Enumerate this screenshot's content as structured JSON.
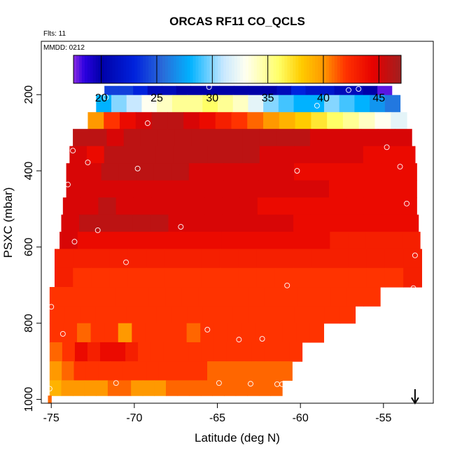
{
  "chart_data": {
    "type": "heatmap",
    "title": "ORCAS RF11 CO_QCLS",
    "flights_note": "Flts: 11",
    "date_note": "MMDD: 0212",
    "xlabel": "Latitude (deg N)",
    "ylabel": "PSXC (mbar)",
    "xlim": [
      -75.6,
      -52.0
    ],
    "ylim": [
      1010,
      60
    ],
    "x_ticks": [
      -75,
      -70,
      -65,
      -60,
      -55
    ],
    "y_ticks": [
      200,
      400,
      600,
      800,
      1000
    ],
    "colorbar": {
      "min": 17.5,
      "max": 47.0,
      "ticks": [
        20,
        25,
        30,
        35,
        40,
        45
      ],
      "stops": [
        {
          "value": 17.5,
          "color": "#8a2be2"
        },
        {
          "value": 18.5,
          "color": "#2a00e0"
        },
        {
          "value": 20.0,
          "color": "#0000a8"
        },
        {
          "value": 23.0,
          "color": "#0022dd"
        },
        {
          "value": 25.5,
          "color": "#2a6ad8"
        },
        {
          "value": 28.0,
          "color": "#00b2ff"
        },
        {
          "value": 31.0,
          "color": "#c8e8ff"
        },
        {
          "value": 33.0,
          "color": "#fffff0"
        },
        {
          "value": 36.0,
          "color": "#ffff66"
        },
        {
          "value": 38.0,
          "color": "#ffcc00"
        },
        {
          "value": 40.0,
          "color": "#ff9900"
        },
        {
          "value": 42.0,
          "color": "#ff3300"
        },
        {
          "value": 44.5,
          "color": "#e60000"
        },
        {
          "value": 47.0,
          "color": "#a02020"
        }
      ]
    },
    "rows": [
      {
        "p": [
          177,
          201
        ],
        "lat": [
          -71.8,
          -54.5
        ],
        "values": [
          24,
          24,
          23,
          21,
          21,
          20,
          20,
          20,
          20,
          20,
          20,
          20,
          21,
          23,
          22,
          22,
          21,
          21,
          20,
          18
        ]
      },
      {
        "p": [
          201,
          246
        ],
        "lat": [
          -72.3,
          -54.0
        ],
        "values": [
          28,
          30,
          31,
          33,
          34,
          35,
          35,
          36,
          35,
          34,
          32,
          30,
          29,
          28,
          28,
          30,
          29,
          28,
          27,
          26
        ]
      },
      {
        "p": [
          246,
          290
        ],
        "lat": [
          -72.8,
          -53.6
        ],
        "values": [
          40,
          42,
          44,
          45,
          46,
          46,
          45,
          44,
          43,
          42,
          41,
          40,
          39,
          38,
          37,
          36,
          35,
          34,
          33,
          32
        ]
      },
      {
        "p": [
          290,
          335
        ],
        "lat": [
          -73.7,
          -53.3
        ],
        "values": [
          46,
          46,
          45,
          46,
          46,
          46,
          46,
          46,
          46,
          46,
          46,
          46,
          46,
          46,
          45,
          45,
          45,
          45,
          45,
          45
        ]
      },
      {
        "p": [
          335,
          380
        ],
        "lat": [
          -73.9,
          -53.1
        ],
        "values": [
          45,
          44,
          46,
          46,
          46,
          46,
          46,
          46,
          46,
          46,
          46,
          45,
          45,
          45,
          45,
          45,
          45,
          44,
          44,
          44
        ]
      },
      {
        "p": [
          380,
          425
        ],
        "lat": [
          -74.1,
          -53.0
        ],
        "values": [
          45,
          45,
          46,
          46,
          46,
          46,
          46,
          45,
          45,
          45,
          45,
          45,
          45,
          44,
          44,
          44,
          44,
          44,
          44,
          44
        ]
      },
      {
        "p": [
          425,
          470
        ],
        "lat": [
          -74.1,
          -53.0
        ],
        "values": [
          45,
          45,
          45,
          45,
          45,
          45,
          45,
          45,
          45,
          45,
          45,
          45,
          45,
          45,
          45,
          44,
          44,
          44,
          44,
          44
        ]
      },
      {
        "p": [
          470,
          515
        ],
        "lat": [
          -74.3,
          -53.0
        ],
        "values": [
          45,
          45,
          46,
          45,
          45,
          45,
          45,
          45,
          45,
          45,
          45,
          44,
          44,
          44,
          44,
          44,
          44,
          44,
          44,
          44
        ]
      },
      {
        "p": [
          515,
          560
        ],
        "lat": [
          -74.4,
          -52.9
        ],
        "values": [
          45,
          46,
          46,
          46,
          46,
          46,
          45,
          45,
          45,
          45,
          45,
          45,
          45,
          44,
          44,
          44,
          44,
          44,
          44,
          44
        ]
      },
      {
        "p": [
          560,
          605
        ],
        "lat": [
          -74.5,
          -52.8
        ],
        "values": [
          45,
          44,
          44,
          44,
          44,
          44,
          44,
          44,
          44,
          44,
          44,
          44,
          44,
          44,
          44,
          43,
          43,
          43,
          43,
          43
        ]
      },
      {
        "p": [
          605,
          655
        ],
        "lat": [
          -74.8,
          -52.7
        ],
        "values": [
          43,
          43,
          43,
          43,
          43,
          43,
          43,
          43,
          43,
          43,
          43,
          43,
          43,
          43,
          43,
          43,
          43,
          43,
          43,
          43
        ]
      },
      {
        "p": [
          655,
          705
        ],
        "lat": [
          -74.8,
          -52.7
        ],
        "values": [
          43,
          42,
          42,
          42,
          42,
          42,
          42,
          42,
          42,
          42,
          42,
          42,
          42,
          42,
          42,
          42,
          42,
          42,
          42,
          43
        ]
      },
      {
        "p": [
          705,
          755
        ],
        "lat": [
          -75.1,
          -55.2
        ],
        "values": [
          42,
          42,
          42,
          42,
          42,
          42,
          42,
          42,
          42,
          42,
          42,
          42,
          42,
          42,
          42,
          42,
          42,
          42,
          42,
          42
        ]
      },
      {
        "p": [
          755,
          800
        ],
        "lat": [
          -75.1,
          -56.7
        ],
        "values": [
          42,
          42,
          42,
          42,
          42,
          42,
          42,
          42,
          42,
          42,
          42,
          42,
          42,
          42,
          42,
          42,
          42,
          42,
          42,
          42
        ]
      },
      {
        "p": [
          800,
          850
        ],
        "lat": [
          -75.1,
          -58.6
        ],
        "values": [
          42,
          42,
          41,
          42,
          42,
          40,
          42,
          42,
          42,
          42,
          41,
          42,
          42,
          42,
          42,
          42,
          42,
          42,
          42,
          42
        ]
      },
      {
        "p": [
          850,
          900
        ],
        "lat": [
          -75.1,
          -59.9
        ],
        "values": [
          41,
          42,
          44,
          43,
          44,
          44,
          43,
          42,
          42,
          42,
          42,
          42,
          42,
          42,
          42,
          42,
          42,
          42,
          42,
          42
        ]
      },
      {
        "p": [
          900,
          950
        ],
        "lat": [
          -75.1,
          -60.5
        ],
        "values": [
          40,
          41,
          42,
          42,
          42,
          42,
          42,
          42,
          42,
          42,
          42,
          42,
          42,
          41,
          41,
          41,
          41,
          41,
          41,
          41
        ]
      },
      {
        "p": [
          950,
          990
        ],
        "lat": [
          -75.1,
          -61.1
        ],
        "values": [
          39,
          40,
          40,
          40,
          40,
          41,
          41,
          40,
          40,
          40,
          41,
          41,
          41,
          41,
          41,
          41,
          41,
          41,
          41,
          41
        ]
      },
      {
        "p": [
          990,
          1010
        ],
        "lat": [
          -75.2,
          -75.0
        ],
        "values": [
          41
        ]
      }
    ],
    "points": [
      {
        "lat": -71.7,
        "p": 207
      },
      {
        "lat": -65.5,
        "p": 180
      },
      {
        "lat": -57.1,
        "p": 188
      },
      {
        "lat": -56.5,
        "p": 185
      },
      {
        "lat": -59.0,
        "p": 229
      },
      {
        "lat": -69.2,
        "p": 275
      },
      {
        "lat": -73.7,
        "p": 347
      },
      {
        "lat": -54.8,
        "p": 338
      },
      {
        "lat": -72.8,
        "p": 378
      },
      {
        "lat": -69.8,
        "p": 394
      },
      {
        "lat": -60.2,
        "p": 400
      },
      {
        "lat": -54.0,
        "p": 389
      },
      {
        "lat": -74.0,
        "p": 436
      },
      {
        "lat": -53.6,
        "p": 486
      },
      {
        "lat": -72.2,
        "p": 556
      },
      {
        "lat": -67.2,
        "p": 547
      },
      {
        "lat": -73.6,
        "p": 586
      },
      {
        "lat": -70.5,
        "p": 640
      },
      {
        "lat": -53.1,
        "p": 622
      },
      {
        "lat": -60.8,
        "p": 701
      },
      {
        "lat": -53.2,
        "p": 708
      },
      {
        "lat": -75.0,
        "p": 757
      },
      {
        "lat": -74.3,
        "p": 828
      },
      {
        "lat": -65.6,
        "p": 817
      },
      {
        "lat": -63.7,
        "p": 843
      },
      {
        "lat": -62.3,
        "p": 841
      },
      {
        "lat": -71.1,
        "p": 957
      },
      {
        "lat": -64.9,
        "p": 957
      },
      {
        "lat": -63.0,
        "p": 959
      },
      {
        "lat": -61.4,
        "p": 960
      },
      {
        "lat": -61.1,
        "p": 960
      },
      {
        "lat": -75.1,
        "p": 972
      }
    ],
    "arrow_marker": {
      "lat": -53.1,
      "direction": "down"
    }
  }
}
